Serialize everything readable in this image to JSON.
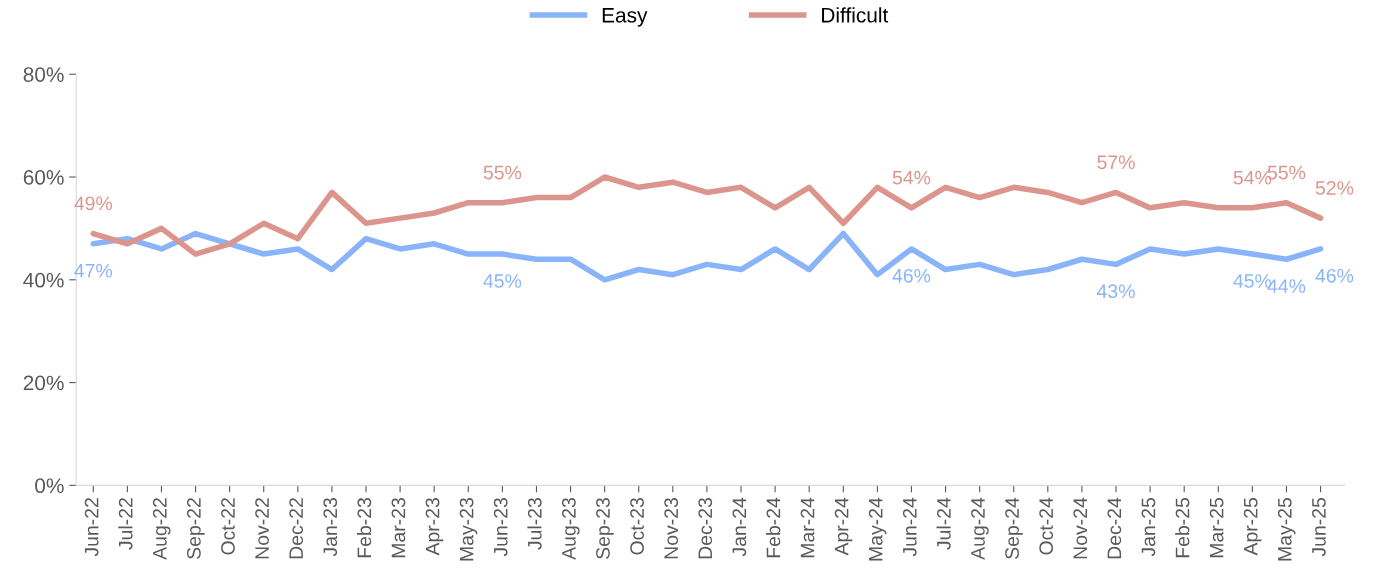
{
  "chart_data": {
    "type": "line",
    "categories": [
      "Jun-22",
      "Jul-22",
      "Aug-22",
      "Sep-22",
      "Oct-22",
      "Nov-22",
      "Dec-22",
      "Jan-23",
      "Feb-23",
      "Mar-23",
      "Apr-23",
      "May-23",
      "Jun-23",
      "Jul-23",
      "Aug-23",
      "Sep-23",
      "Oct-23",
      "Nov-23",
      "Dec-23",
      "Jan-24",
      "Feb-24",
      "Mar-24",
      "Apr-24",
      "May-24",
      "Jun-24",
      "Jul-24",
      "Aug-24",
      "Sep-24",
      "Oct-24",
      "Nov-24",
      "Dec-24",
      "Jan-25",
      "Feb-25",
      "Mar-25",
      "Apr-25",
      "May-25",
      "Jun-25"
    ],
    "series": [
      {
        "name": "Easy",
        "color": "#8ab4fa",
        "values": [
          47,
          48,
          46,
          49,
          47,
          45,
          46,
          42,
          48,
          46,
          47,
          45,
          45,
          44,
          44,
          40,
          42,
          41,
          43,
          42,
          46,
          42,
          49,
          41,
          46,
          42,
          43,
          41,
          42,
          44,
          43,
          46,
          45,
          46,
          45,
          44,
          46
        ],
        "value_labels": [
          "47%",
          null,
          null,
          null,
          null,
          null,
          null,
          null,
          null,
          null,
          null,
          null,
          "45%",
          null,
          null,
          null,
          null,
          null,
          null,
          null,
          null,
          null,
          null,
          null,
          "46%",
          null,
          null,
          null,
          null,
          null,
          "43%",
          null,
          null,
          null,
          "45%",
          "44%",
          "46%"
        ]
      },
      {
        "name": "Difficult",
        "color": "#dc958c",
        "values": [
          49,
          47,
          50,
          45,
          47,
          51,
          48,
          57,
          51,
          52,
          53,
          55,
          55,
          56,
          56,
          60,
          58,
          59,
          57,
          58,
          54,
          58,
          51,
          58,
          54,
          58,
          56,
          58,
          57,
          55,
          57,
          54,
          55,
          54,
          54,
          55,
          52
        ],
        "value_labels": [
          "49%",
          null,
          null,
          null,
          null,
          null,
          null,
          null,
          null,
          null,
          null,
          null,
          "55%",
          null,
          null,
          null,
          null,
          null,
          null,
          null,
          null,
          null,
          null,
          null,
          "54%",
          null,
          null,
          null,
          null,
          null,
          "57%",
          null,
          null,
          null,
          "54%",
          "55%",
          "52%"
        ]
      }
    ],
    "ylim": [
      0,
      80
    ],
    "yticks": [
      {
        "value": 0,
        "label": "0%"
      },
      {
        "value": 20,
        "label": "20%"
      },
      {
        "value": 40,
        "label": "40%"
      },
      {
        "value": 60,
        "label": "60%"
      },
      {
        "value": 80,
        "label": "80%"
      }
    ],
    "legend": "top",
    "grid": false,
    "marker": "none",
    "line_style": "solid"
  }
}
